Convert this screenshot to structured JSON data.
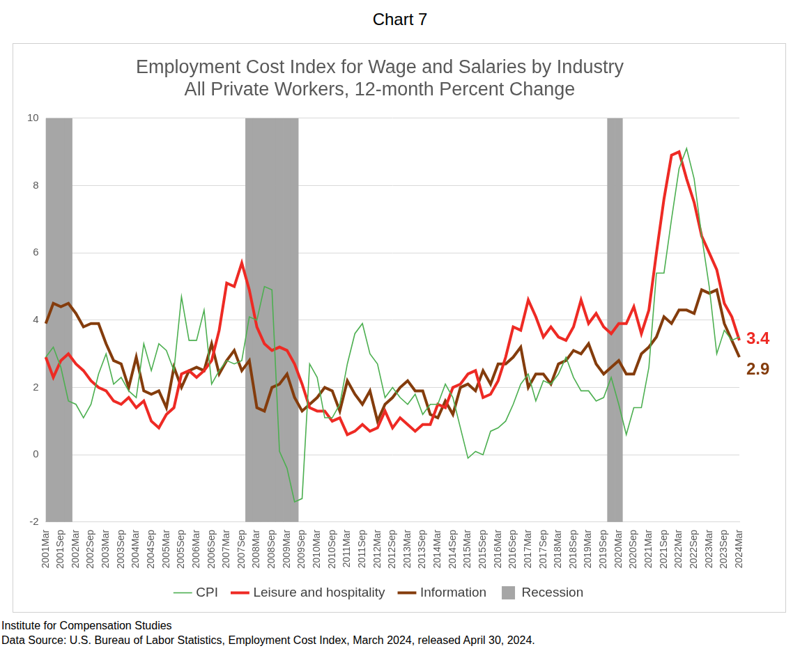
{
  "header": "Chart 7",
  "notes": [
    "Institute for Compensation Studies",
    "Data Source: U.S. Bureau of Labor Statistics, Employment Cost Index, March 2024, released April 30, 2024."
  ],
  "chart_data": {
    "type": "line",
    "title": [
      "Employment Cost Index for Wage and Salaries by Industry",
      "All Private Workers, 12-month Percent Change"
    ],
    "categories": [
      "2001Mar",
      null,
      "2001Sep",
      null,
      "2002Mar",
      null,
      "2002Sep",
      null,
      "2003Mar",
      null,
      "2003Sep",
      null,
      "2004Mar",
      null,
      "2004Sep",
      null,
      "2005Mar",
      null,
      "2005Sep",
      null,
      "2006Mar",
      null,
      "2006Sep",
      null,
      "2007Mar",
      null,
      "2007Sep",
      null,
      "2008Mar",
      null,
      "2008Sep",
      null,
      "2009Mar",
      null,
      "2009Sep",
      null,
      "2010Mar",
      null,
      "2010Sep",
      null,
      "2011Mar",
      null,
      "2011Sep",
      null,
      "2012Mar",
      null,
      "2012Sep",
      null,
      "2013Mar",
      null,
      "2013Sep",
      null,
      "2014Mar",
      null,
      "2014Sep",
      null,
      "2015Mar",
      null,
      "2015Sep",
      null,
      "2016Mar",
      null,
      "2016Sep",
      null,
      "2017Mar",
      null,
      "2017Sep",
      null,
      "2018Mar",
      null,
      "2018Sep",
      null,
      "2019Mar",
      null,
      "2019Sep",
      null,
      "2020Mar",
      null,
      "2020Sep",
      null,
      "2021Mar",
      null,
      "2021Sep",
      null,
      "2022Mar",
      null,
      "2022Sep",
      null,
      "2023Mar",
      null,
      "2023Sep",
      null,
      "2024Mar"
    ],
    "series": [
      {
        "name": "Recession",
        "type": "bar",
        "color": "#a6a6a6",
        "values": [
          10,
          10,
          10,
          10,
          null,
          null,
          null,
          null,
          null,
          null,
          null,
          null,
          null,
          null,
          null,
          null,
          null,
          null,
          null,
          null,
          null,
          null,
          null,
          null,
          null,
          null,
          null,
          10,
          10,
          10,
          10,
          10,
          10,
          10,
          null,
          null,
          null,
          null,
          null,
          null,
          null,
          null,
          null,
          null,
          null,
          null,
          null,
          null,
          null,
          null,
          null,
          null,
          null,
          null,
          null,
          null,
          null,
          null,
          null,
          null,
          null,
          null,
          null,
          null,
          null,
          null,
          null,
          null,
          null,
          null,
          null,
          null,
          null,
          null,
          null,
          10,
          10,
          null,
          null,
          null,
          null,
          null,
          null,
          null,
          null,
          null,
          null,
          null,
          null,
          null,
          null,
          null,
          null
        ]
      },
      {
        "name": "Information",
        "type": "line",
        "color": "#843c0c",
        "line_style": "thick",
        "values": [
          3.9,
          4.5,
          4.4,
          4.5,
          4.2,
          3.8,
          3.9,
          3.9,
          3.3,
          2.8,
          2.7,
          2.0,
          2.9,
          1.9,
          1.8,
          1.9,
          1.4,
          2.6,
          2.0,
          2.5,
          2.6,
          2.5,
          3.3,
          2.4,
          2.8,
          3.1,
          2.5,
          2.8,
          1.4,
          1.3,
          2.0,
          2.1,
          2.4,
          1.7,
          1.3,
          1.5,
          1.7,
          2.0,
          1.9,
          1.3,
          2.2,
          1.8,
          1.5,
          1.9,
          1.0,
          1.5,
          1.7,
          2.0,
          2.2,
          1.9,
          1.9,
          1.2,
          1.1,
          1.6,
          1.2,
          2.0,
          2.1,
          1.9,
          2.5,
          2.1,
          2.7,
          2.7,
          2.9,
          3.2,
          2.0,
          2.4,
          2.4,
          2.1,
          2.7,
          2.8,
          3.1,
          3.0,
          3.3,
          2.7,
          2.4,
          2.6,
          2.8,
          2.4,
          2.4,
          3.0,
          3.2,
          3.5,
          4.1,
          3.9,
          4.3,
          4.3,
          4.2,
          4.9,
          4.8,
          4.9,
          3.9,
          3.4,
          2.9
        ]
      },
      {
        "name": "Leisure and hospitality",
        "type": "line",
        "color": "#ee2a24",
        "line_style": "thick",
        "values": [
          2.9,
          2.3,
          2.8,
          3.0,
          2.7,
          2.5,
          2.2,
          2.0,
          1.9,
          1.6,
          1.5,
          1.7,
          1.4,
          1.6,
          1.0,
          0.8,
          1.2,
          1.4,
          2.4,
          2.5,
          2.3,
          2.5,
          2.8,
          3.7,
          5.1,
          5.0,
          5.7,
          4.9,
          3.8,
          3.3,
          3.1,
          3.2,
          3.1,
          2.7,
          2.1,
          1.4,
          1.3,
          1.3,
          1.0,
          1.1,
          0.6,
          0.7,
          0.9,
          0.7,
          0.8,
          1.3,
          0.8,
          1.1,
          0.9,
          0.7,
          0.9,
          0.9,
          1.5,
          1.4,
          2.0,
          2.1,
          2.4,
          2.5,
          1.7,
          1.8,
          2.2,
          2.9,
          3.8,
          3.7,
          4.6,
          4.1,
          3.5,
          3.8,
          3.5,
          3.4,
          3.8,
          4.6,
          3.9,
          4.2,
          3.8,
          3.6,
          3.9,
          3.9,
          4.4,
          3.6,
          4.3,
          6.0,
          7.6,
          8.9,
          9.0,
          8.2,
          7.5,
          6.5,
          6.0,
          5.5,
          4.5,
          4.1,
          3.4
        ]
      },
      {
        "name": "CPI",
        "type": "line",
        "color": "#4caf50",
        "line_style": "thin",
        "values": [
          2.9,
          3.2,
          2.6,
          1.6,
          1.5,
          1.1,
          1.5,
          2.4,
          3.0,
          2.1,
          2.3,
          1.9,
          1.7,
          3.3,
          2.5,
          3.3,
          3.1,
          2.5,
          4.7,
          3.4,
          3.4,
          4.3,
          2.1,
          2.5,
          2.8,
          2.7,
          2.8,
          4.1,
          4.0,
          5.0,
          4.9,
          0.1,
          -0.4,
          -1.4,
          -1.3,
          2.7,
          2.3,
          1.1,
          1.1,
          1.5,
          2.7,
          3.6,
          3.9,
          3.0,
          2.7,
          1.7,
          2.0,
          1.7,
          1.5,
          1.8,
          1.2,
          1.5,
          1.5,
          2.1,
          1.7,
          0.8,
          -0.1,
          0.1,
          0.0,
          0.7,
          0.8,
          1.0,
          1.5,
          2.1,
          2.4,
          1.6,
          2.2,
          2.1,
          2.4,
          2.9,
          2.3,
          1.9,
          1.9,
          1.6,
          1.7,
          2.3,
          1.5,
          0.6,
          1.4,
          1.4,
          2.6,
          5.4,
          5.4,
          7.0,
          8.5,
          9.1,
          8.2,
          6.5,
          5.0,
          3.0,
          3.7,
          3.4,
          3.5
        ]
      }
    ],
    "annotations": [
      {
        "text": "3.4",
        "x": "2024Mar",
        "y": 3.4,
        "series": "Leisure and hospitality"
      },
      {
        "text": "2.9",
        "x": "2024Mar",
        "y": 2.9,
        "series": "Information"
      }
    ],
    "ylim": [
      -2,
      10
    ],
    "yticks": [
      -2,
      0,
      2,
      4,
      6,
      8,
      10
    ],
    "grid": true,
    "legend": "bottom"
  }
}
